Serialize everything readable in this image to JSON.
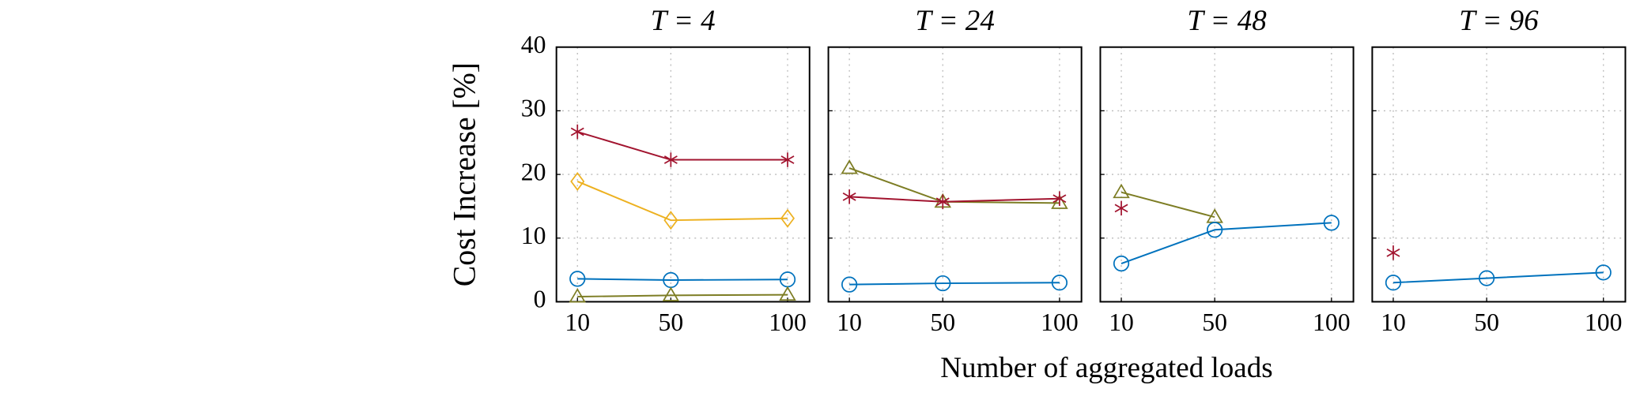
{
  "xlabel": "Number of aggregated loads",
  "ylabel": "Cost Increase [%]",
  "chart_data": [
    {
      "type": "line",
      "title": "T = 4",
      "x": [
        10,
        50,
        100
      ],
      "xlim": [
        1,
        109.4
      ],
      "ylim": [
        0,
        40
      ],
      "xticks": [
        10,
        50,
        100
      ],
      "yticks": [
        0,
        10,
        20,
        30,
        40
      ],
      "grid": true,
      "series": [
        {
          "color": "#a2142f",
          "marker": "star",
          "values": [
            26.7,
            22.3,
            22.3
          ]
        },
        {
          "color": "#edb120",
          "marker": "diamond",
          "values": [
            18.9,
            12.8,
            13.1
          ]
        },
        {
          "color": "#0072bd",
          "marker": "circle",
          "values": [
            3.6,
            3.4,
            3.5
          ]
        },
        {
          "color": "#7d7d24",
          "marker": "triangle",
          "values": [
            0.8,
            1.0,
            1.1
          ]
        }
      ]
    },
    {
      "type": "line",
      "title": "T = 24",
      "x": [
        10,
        50,
        100
      ],
      "xlim": [
        1,
        109.4
      ],
      "ylim": [
        0,
        40
      ],
      "xticks": [
        10,
        50,
        100
      ],
      "yticks": [
        0,
        10,
        20,
        30,
        40
      ],
      "grid": true,
      "series": [
        {
          "color": "#7d7d24",
          "marker": "triangle",
          "values": [
            21.0,
            15.7,
            15.5
          ]
        },
        {
          "color": "#a2142f",
          "marker": "star",
          "values": [
            16.5,
            15.7,
            16.2
          ]
        },
        {
          "color": "#0072bd",
          "marker": "circle",
          "values": [
            2.7,
            2.9,
            3.0
          ]
        }
      ]
    },
    {
      "type": "line",
      "title": "T = 48",
      "x": [
        10,
        50,
        100
      ],
      "xlim": [
        1,
        109.4
      ],
      "ylim": [
        0,
        40
      ],
      "xticks": [
        10,
        50,
        100
      ],
      "yticks": [
        0,
        10,
        20,
        30,
        40
      ],
      "grid": true,
      "series": [
        {
          "color": "#7d7d24",
          "marker": "triangle",
          "values": [
            17.2,
            13.3,
            null
          ]
        },
        {
          "color": "#a2142f",
          "marker": "star",
          "values": [
            14.7,
            null,
            null
          ]
        },
        {
          "color": "#0072bd",
          "marker": "circle",
          "values": [
            6.0,
            11.3,
            12.4
          ]
        }
      ]
    },
    {
      "type": "line",
      "title": "T = 96",
      "x": [
        10,
        50,
        100
      ],
      "xlim": [
        1,
        109.4
      ],
      "ylim": [
        0,
        40
      ],
      "xticks": [
        10,
        50,
        100
      ],
      "yticks": [
        0,
        10,
        20,
        30,
        40
      ],
      "grid": true,
      "series": [
        {
          "color": "#a2142f",
          "marker": "star",
          "values": [
            7.7,
            null,
            null
          ]
        },
        {
          "color": "#0072bd",
          "marker": "circle",
          "values": [
            3.0,
            3.7,
            4.6
          ]
        }
      ]
    }
  ]
}
